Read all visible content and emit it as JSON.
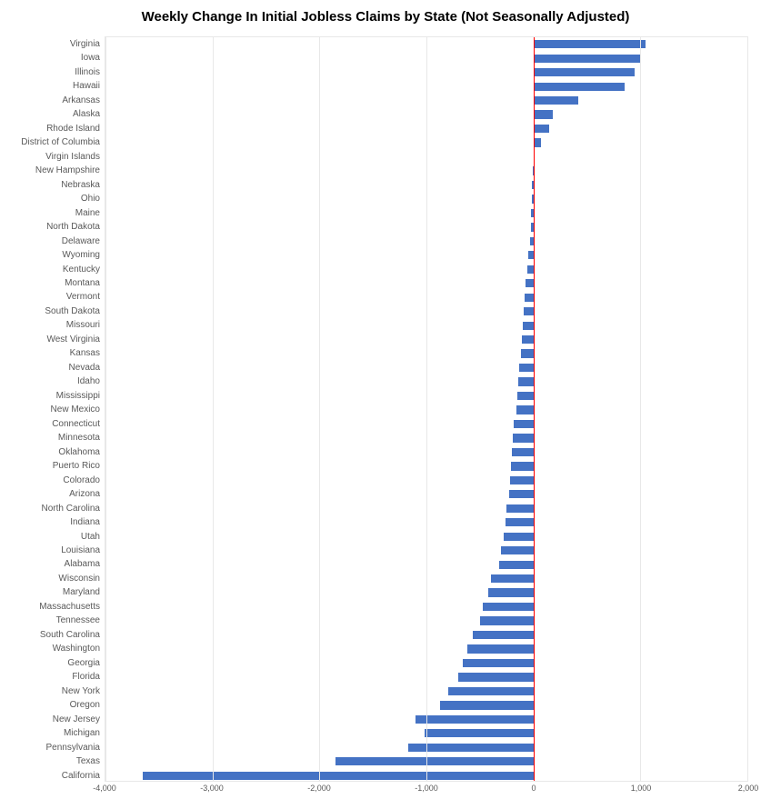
{
  "chart": {
    "type": "bar",
    "title": "Weekly Change In Initial Jobless Claims by State (Not Seasonally Adjusted)",
    "title_fontsize": 15,
    "title_color": "#000000",
    "background_color": "#ffffff",
    "grid_color": "#e8e8e8",
    "zero_line_color": "#ff0000",
    "bar_color": "#4472c4",
    "label_color": "#595959",
    "label_fontsize": 10,
    "xlim": [
      -4000,
      2000
    ],
    "xtick_step": 1000,
    "xticks": [
      -4000,
      -3000,
      -2000,
      -1000,
      0,
      1000,
      2000
    ],
    "bar_height_ratio": 0.6,
    "data": [
      {
        "state": "Virginia",
        "value": 1050
      },
      {
        "state": "Iowa",
        "value": 1000
      },
      {
        "state": "Illinois",
        "value": 950
      },
      {
        "state": "Hawaii",
        "value": 850
      },
      {
        "state": "Arkansas",
        "value": 420
      },
      {
        "state": "Alaska",
        "value": 180
      },
      {
        "state": "Rhode Island",
        "value": 150
      },
      {
        "state": "District of Columbia",
        "value": 70
      },
      {
        "state": "Virgin Islands",
        "value": 10
      },
      {
        "state": "New Hampshire",
        "value": -5
      },
      {
        "state": "Nebraska",
        "value": -10
      },
      {
        "state": "Ohio",
        "value": -15
      },
      {
        "state": "Maine",
        "value": -20
      },
      {
        "state": "North Dakota",
        "value": -25
      },
      {
        "state": "Delaware",
        "value": -30
      },
      {
        "state": "Wyoming",
        "value": -50
      },
      {
        "state": "Kentucky",
        "value": -60
      },
      {
        "state": "Montana",
        "value": -70
      },
      {
        "state": "Vermont",
        "value": -80
      },
      {
        "state": "South Dakota",
        "value": -90
      },
      {
        "state": "Missouri",
        "value": -100
      },
      {
        "state": "West Virginia",
        "value": -110
      },
      {
        "state": "Kansas",
        "value": -120
      },
      {
        "state": "Nevada",
        "value": -130
      },
      {
        "state": "Idaho",
        "value": -140
      },
      {
        "state": "Mississippi",
        "value": -150
      },
      {
        "state": "New Mexico",
        "value": -160
      },
      {
        "state": "Connecticut",
        "value": -180
      },
      {
        "state": "Minnesota",
        "value": -190
      },
      {
        "state": "Oklahoma",
        "value": -200
      },
      {
        "state": "Puerto Rico",
        "value": -210
      },
      {
        "state": "Colorado",
        "value": -220
      },
      {
        "state": "Arizona",
        "value": -230
      },
      {
        "state": "North Carolina",
        "value": -250
      },
      {
        "state": "Indiana",
        "value": -260
      },
      {
        "state": "Utah",
        "value": -280
      },
      {
        "state": "Louisiana",
        "value": -300
      },
      {
        "state": "Alabama",
        "value": -320
      },
      {
        "state": "Wisconsin",
        "value": -400
      },
      {
        "state": "Maryland",
        "value": -420
      },
      {
        "state": "Massachusetts",
        "value": -470
      },
      {
        "state": "Tennessee",
        "value": -500
      },
      {
        "state": "South Carolina",
        "value": -570
      },
      {
        "state": "Washington",
        "value": -620
      },
      {
        "state": "Georgia",
        "value": -660
      },
      {
        "state": "Florida",
        "value": -700
      },
      {
        "state": "New York",
        "value": -800
      },
      {
        "state": "Oregon",
        "value": -870
      },
      {
        "state": "New Jersey",
        "value": -1100
      },
      {
        "state": "Michigan",
        "value": -1020
      },
      {
        "state": "Pennsylvania",
        "value": -1170
      },
      {
        "state": "Texas",
        "value": -1850
      },
      {
        "state": "California",
        "value": -3650
      }
    ]
  }
}
